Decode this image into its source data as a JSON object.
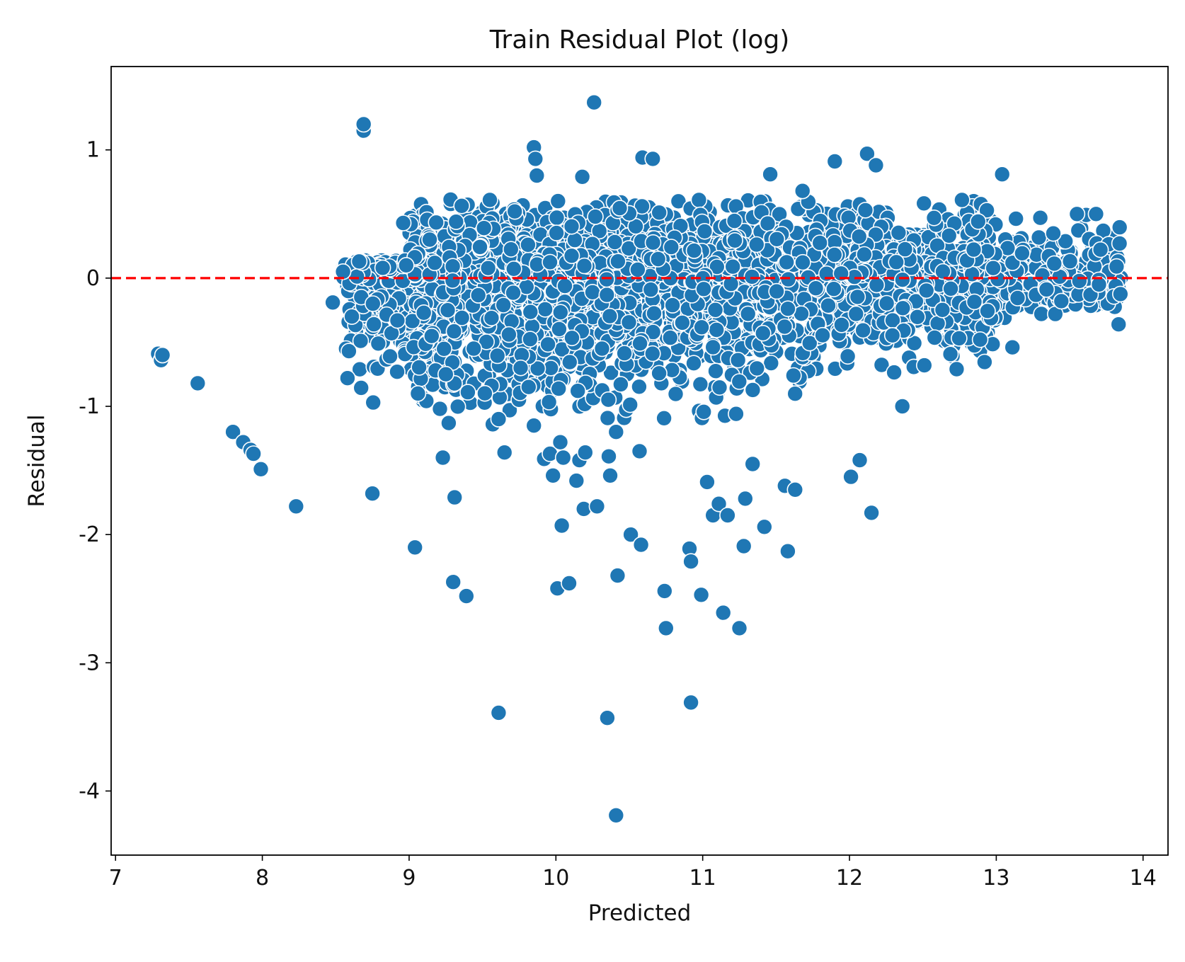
{
  "chart_data": {
    "type": "scatter",
    "title": "Train Residual Plot (log)",
    "xlabel": "Predicted",
    "ylabel": "Residual",
    "xlim": [
      6.97,
      14.17
    ],
    "ylim": [
      -4.5,
      1.65
    ],
    "xticks": [
      7,
      8,
      9,
      10,
      11,
      12,
      13,
      14
    ],
    "yticks": [
      1,
      0,
      -1,
      -2,
      -3,
      -4
    ],
    "xtick_labels": [
      "7",
      "8",
      "9",
      "10",
      "11",
      "12",
      "13",
      "14"
    ],
    "ytick_labels": [
      "1",
      "0",
      "-1",
      "-2",
      "-3",
      "-4"
    ],
    "grid": false,
    "legend": "none",
    "point_color": "#1f77b4",
    "point_edge_color": "#ffffff",
    "reference_line": {
      "y": 0,
      "color": "#ff0000",
      "style": "dashed"
    },
    "dense_cloud_note_free": true,
    "points": [
      [
        7.29,
        -0.59
      ],
      [
        7.31,
        -0.64
      ],
      [
        7.32,
        -0.6
      ],
      [
        7.56,
        -0.82
      ],
      [
        7.8,
        -1.2
      ],
      [
        7.87,
        -1.28
      ],
      [
        7.92,
        -1.34
      ],
      [
        7.94,
        -1.37
      ],
      [
        7.99,
        -1.49
      ],
      [
        8.23,
        -1.78
      ],
      [
        8.48,
        -0.19
      ],
      [
        8.55,
        0.05
      ],
      [
        8.57,
        -0.55
      ],
      [
        8.58,
        -0.78
      ],
      [
        8.59,
        -0.57
      ],
      [
        8.61,
        -0.3
      ],
      [
        8.66,
        0.13
      ],
      [
        8.67,
        -0.49
      ],
      [
        8.69,
        1.15
      ],
      [
        8.69,
        1.2
      ],
      [
        8.75,
        -1.68
      ],
      [
        8.76,
        -0.36
      ],
      [
        8.79,
        -0.51
      ],
      [
        8.82,
        0.08
      ],
      [
        8.87,
        -0.61
      ],
      [
        8.88,
        -0.43
      ],
      [
        8.92,
        -0.33
      ],
      [
        8.96,
        0.43
      ],
      [
        8.98,
        0.1
      ],
      [
        9.04,
        -2.1
      ],
      [
        9.06,
        -0.9
      ],
      [
        9.1,
        -0.27
      ],
      [
        9.14,
        0.3
      ],
      [
        9.18,
        -0.72
      ],
      [
        9.21,
        -1.02
      ],
      [
        9.23,
        -1.4
      ],
      [
        9.25,
        -0.75
      ],
      [
        9.27,
        -1.13
      ],
      [
        9.31,
        -1.71
      ],
      [
        9.3,
        -2.37
      ],
      [
        9.32,
        0.44
      ],
      [
        9.36,
        -0.31
      ],
      [
        9.39,
        -2.48
      ],
      [
        9.4,
        -0.89
      ],
      [
        9.44,
        -0.55
      ],
      [
        9.51,
        0.39
      ],
      [
        9.55,
        0.61
      ],
      [
        9.57,
        -1.14
      ],
      [
        9.61,
        -1.1
      ],
      [
        9.61,
        -3.39
      ],
      [
        9.65,
        -1.36
      ],
      [
        9.68,
        -0.44
      ],
      [
        9.72,
        0.52
      ],
      [
        9.76,
        -0.7
      ],
      [
        9.81,
        0.26
      ],
      [
        9.85,
        -1.15
      ],
      [
        9.85,
        1.02
      ],
      [
        9.86,
        0.93
      ],
      [
        9.87,
        0.8
      ],
      [
        9.92,
        -1.41
      ],
      [
        9.96,
        -1.37
      ],
      [
        9.98,
        -1.54
      ],
      [
        10.01,
        -2.42
      ],
      [
        10.03,
        -1.28
      ],
      [
        10.04,
        -1.93
      ],
      [
        10.05,
        -1.4
      ],
      [
        10.09,
        -2.38
      ],
      [
        10.14,
        -1.58
      ],
      [
        10.16,
        -1.42
      ],
      [
        10.18,
        0.79
      ],
      [
        10.19,
        -1.8
      ],
      [
        10.2,
        -1.36
      ],
      [
        10.26,
        1.37
      ],
      [
        10.28,
        -1.78
      ],
      [
        10.35,
        -3.43
      ],
      [
        10.36,
        -1.39
      ],
      [
        10.37,
        -1.54
      ],
      [
        10.41,
        -4.19
      ],
      [
        10.42,
        -2.32
      ],
      [
        10.41,
        -1.2
      ],
      [
        10.51,
        -2.0
      ],
      [
        10.57,
        -1.35
      ],
      [
        10.58,
        -2.08
      ],
      [
        10.59,
        0.94
      ],
      [
        10.66,
        0.93
      ],
      [
        10.74,
        -2.44
      ],
      [
        10.75,
        -2.73
      ],
      [
        10.91,
        -2.11
      ],
      [
        10.92,
        -2.21
      ],
      [
        10.92,
        -3.31
      ],
      [
        10.99,
        -2.47
      ],
      [
        11.03,
        -1.59
      ],
      [
        11.07,
        -1.85
      ],
      [
        11.11,
        -1.76
      ],
      [
        11.14,
        -2.61
      ],
      [
        11.17,
        -1.85
      ],
      [
        11.25,
        -2.73
      ],
      [
        11.28,
        -2.09
      ],
      [
        11.29,
        -1.72
      ],
      [
        11.34,
        -1.45
      ],
      [
        11.42,
        -1.94
      ],
      [
        11.46,
        0.81
      ],
      [
        11.56,
        -1.62
      ],
      [
        11.58,
        -2.13
      ],
      [
        11.63,
        -1.65
      ],
      [
        11.68,
        0.68
      ],
      [
        11.9,
        0.91
      ],
      [
        12.01,
        -1.55
      ],
      [
        12.07,
        -1.42
      ],
      [
        12.12,
        0.97
      ],
      [
        12.15,
        -1.83
      ],
      [
        12.18,
        0.88
      ],
      [
        12.36,
        -1.0
      ],
      [
        12.51,
        -0.68
      ],
      [
        12.73,
        -0.71
      ],
      [
        13.04,
        0.81
      ],
      [
        13.11,
        -0.54
      ],
      [
        13.68,
        0.5
      ],
      [
        13.7,
        -0.05
      ],
      [
        13.84,
        0.27
      ],
      [
        13.83,
        0.13
      ],
      [
        13.82,
        0.09
      ],
      [
        13.55,
        0.5
      ],
      [
        13.3,
        0.47
      ],
      [
        12.89,
        -0.48
      ]
    ],
    "cloud": {
      "seed": 42,
      "count": 3800,
      "x_range": [
        8.55,
        13.85
      ],
      "description_free": true
    }
  }
}
